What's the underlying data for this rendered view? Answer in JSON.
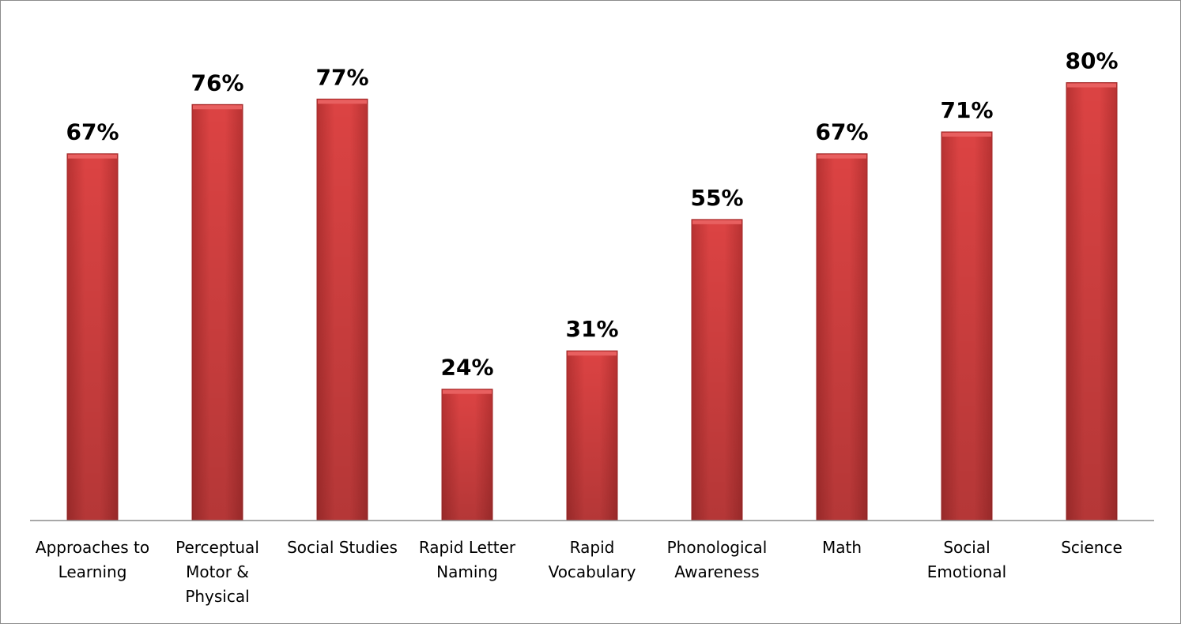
{
  "chart_data": {
    "type": "bar",
    "categories": [
      [
        "Approaches to",
        "Learning"
      ],
      [
        "Perceptual",
        "Motor &",
        "Physical"
      ],
      [
        "Social Studies"
      ],
      [
        "Rapid Letter",
        "Naming"
      ],
      [
        "Rapid",
        "Vocabulary"
      ],
      [
        "Phonological",
        "Awareness"
      ],
      [
        "Math"
      ],
      [
        "Social",
        "Emotional"
      ],
      [
        "Science"
      ]
    ],
    "values": [
      67,
      76,
      77,
      24,
      31,
      55,
      67,
      71,
      80
    ],
    "value_labels": [
      "67%",
      "76%",
      "77%",
      "24%",
      "31%",
      "55%",
      "67%",
      "71%",
      "80%"
    ],
    "ylim": [
      0,
      100
    ],
    "grid": false,
    "legend": "none",
    "colors": {
      "bar": "#d94040",
      "bar_dark": "#a32a2a",
      "bar_light": "#e86060",
      "axis": "#8c8c8c"
    }
  }
}
